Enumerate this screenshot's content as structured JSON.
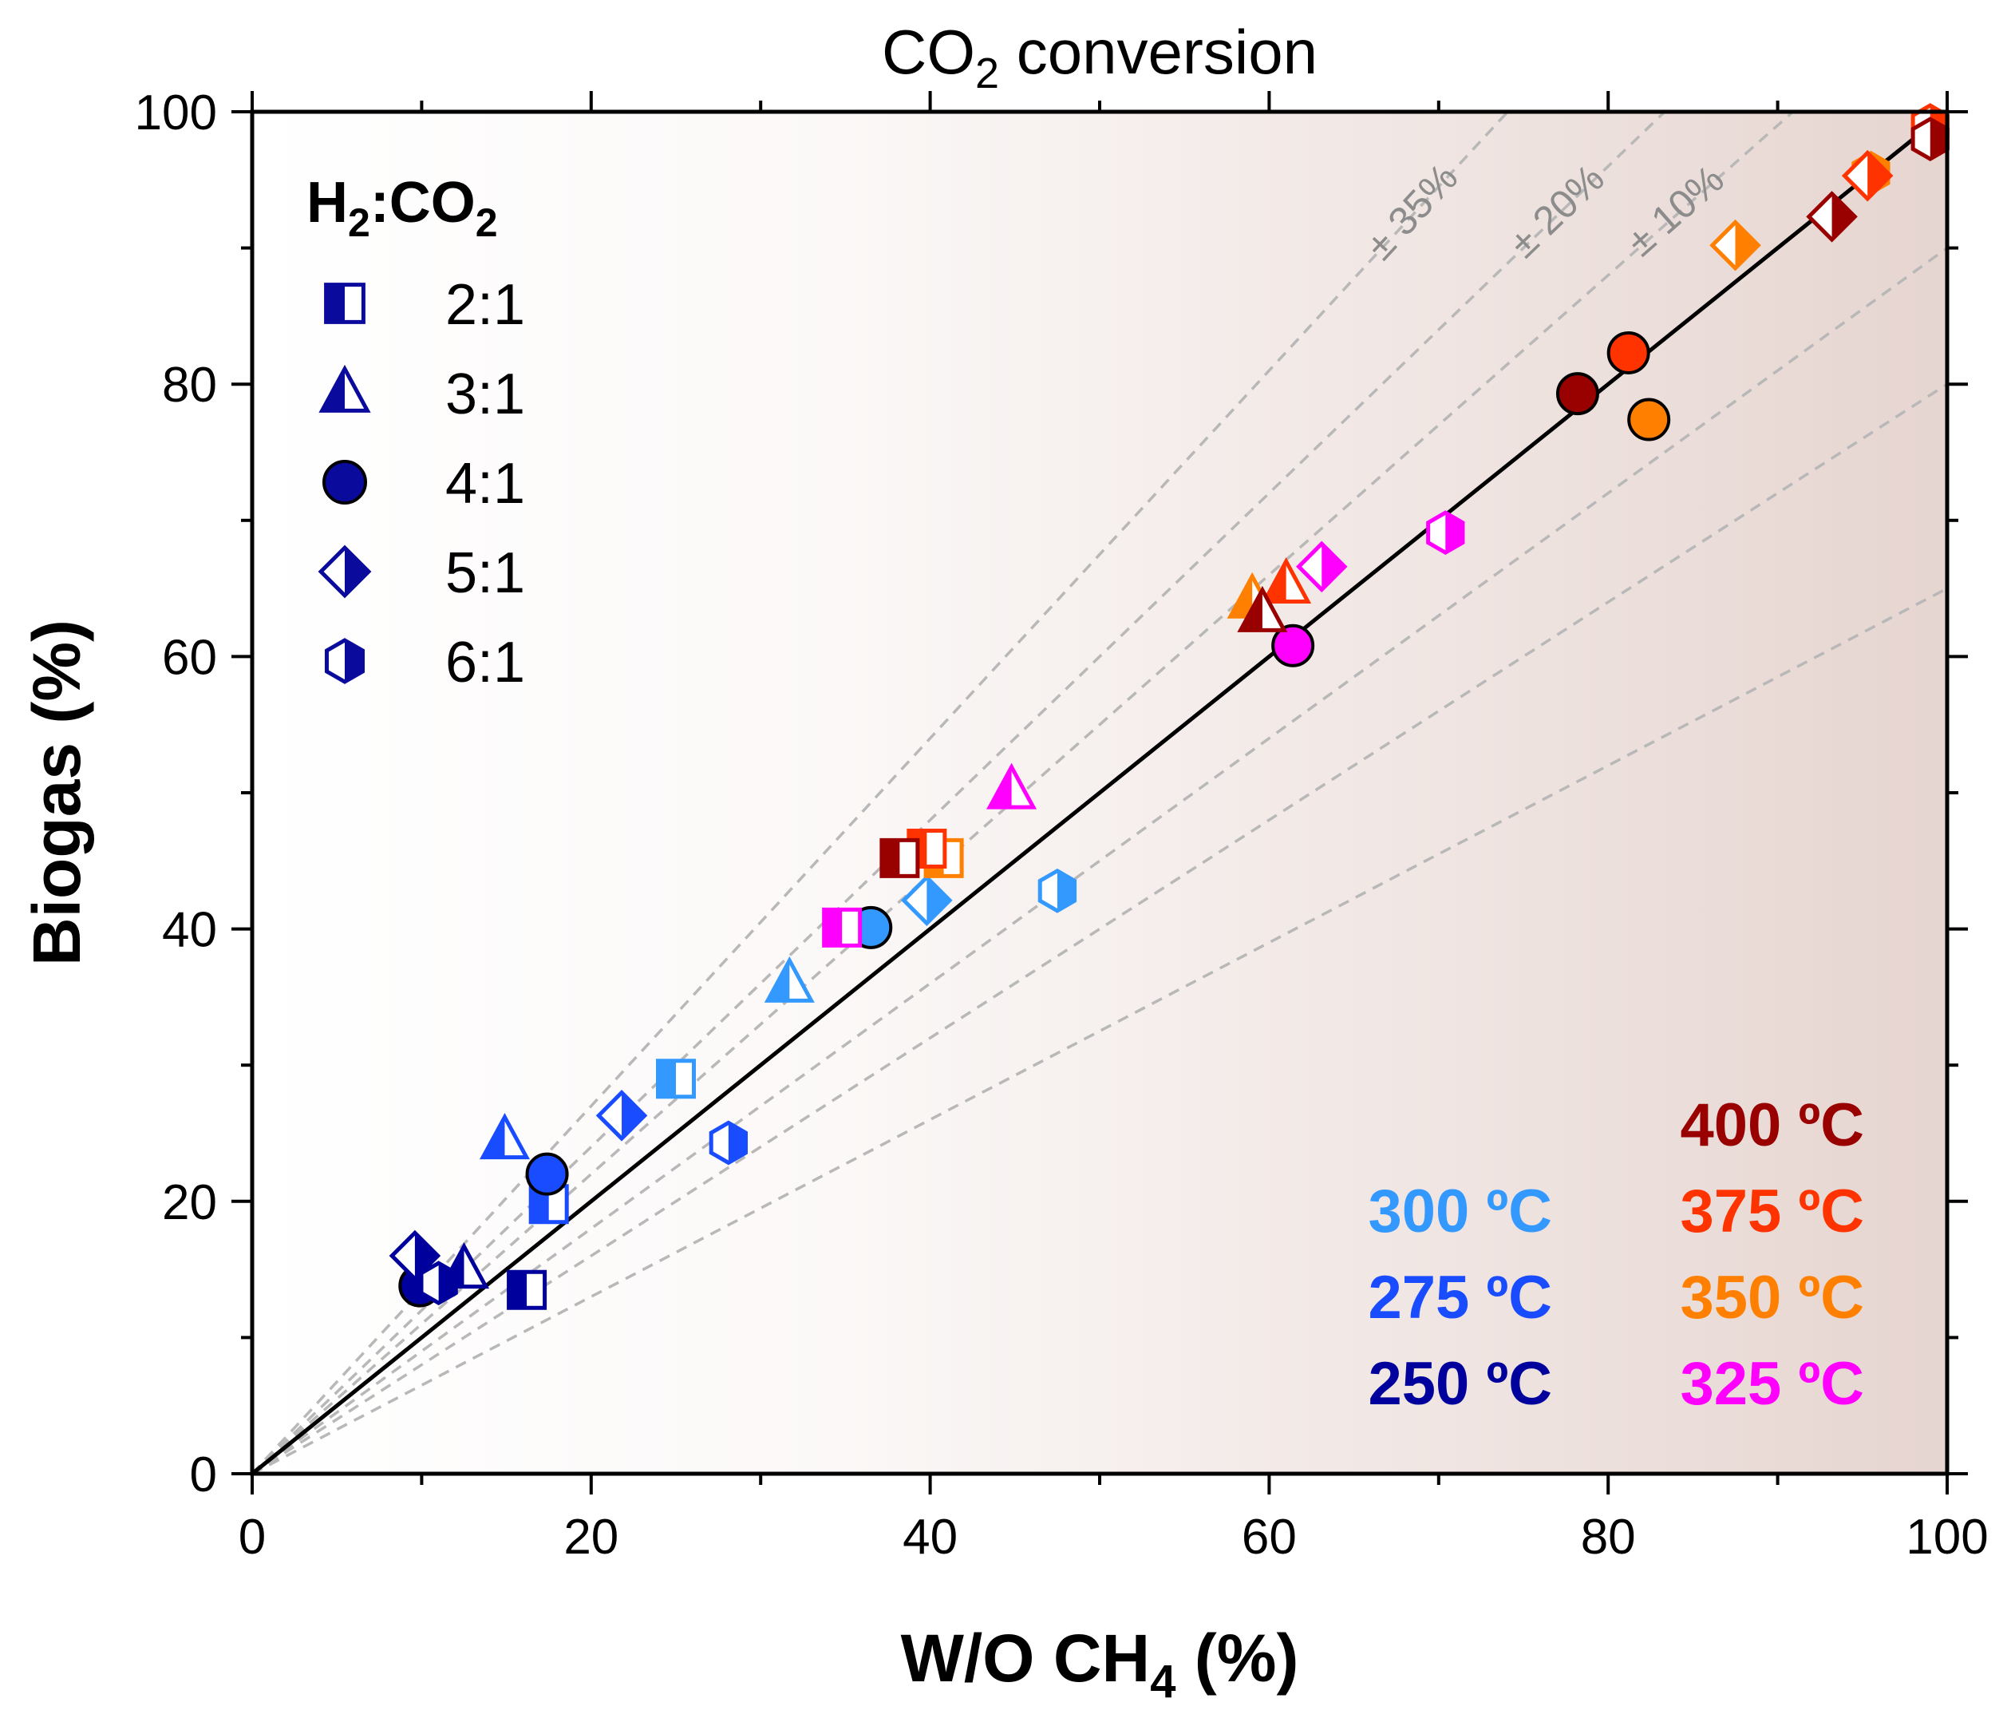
{
  "chart_data": {
    "type": "scatter",
    "title": "CO2 conversion",
    "title_parts": {
      "base": "CO",
      "sub": "2",
      "rest": " conversion"
    },
    "xlabel": "W/O CH4 (%)",
    "xlabel_parts": {
      "base": "W/O CH",
      "sub": "4",
      "rest": " (%)"
    },
    "ylabel": "Biogas (%)",
    "xlim": [
      0,
      100
    ],
    "ylim": [
      0,
      100
    ],
    "xticks": [
      0,
      20,
      40,
      60,
      80,
      100
    ],
    "yticks": [
      0,
      20,
      40,
      60,
      80,
      100
    ],
    "minor_step": 10,
    "grid": false,
    "parity_line": {
      "slope": 1,
      "color": "#000000"
    },
    "guide_lines": [
      {
        "label": "± 35%",
        "slopes": [
          1.35,
          0.65
        ]
      },
      {
        "label": "± 20%",
        "slopes": [
          1.2,
          0.8
        ]
      },
      {
        "label": "± 10%",
        "slopes": [
          1.1,
          0.9
        ]
      }
    ],
    "guide_color": "#b8b8b8",
    "legend": {
      "title": "H2:CO2",
      "title_parts": {
        "a": "H",
        "a_sub": "2",
        "mid": ":CO",
        "b_sub": "2"
      },
      "placement": "top-left",
      "color": "#0a0a9c",
      "entries": [
        {
          "label": "2:1",
          "marker": "square"
        },
        {
          "label": "3:1",
          "marker": "triangle"
        },
        {
          "label": "4:1",
          "marker": "circle"
        },
        {
          "label": "5:1",
          "marker": "diamond"
        },
        {
          "label": "6:1",
          "marker": "hexagon"
        }
      ]
    },
    "temperatures": [
      {
        "label": "400 ºC",
        "temp": 400,
        "color": "#990000"
      },
      {
        "label": "375 ºC",
        "temp": 375,
        "color": "#ff3300"
      },
      {
        "label": "350 ºC",
        "temp": 350,
        "color": "#ff7f00"
      },
      {
        "label": "325 ºC",
        "temp": 325,
        "color": "#ff00ff"
      },
      {
        "label": "300 ºC",
        "temp": 300,
        "color": "#3399ff"
      },
      {
        "label": "275 ºC",
        "temp": 275,
        "color": "#1a4cff"
      },
      {
        "label": "250 ºC",
        "temp": 250,
        "color": "#00009c"
      }
    ],
    "series": [
      {
        "name": "250 ºC",
        "temp": 250,
        "points": [
          {
            "marker": "square",
            "x": 16.2,
            "y": 13.5
          },
          {
            "marker": "triangle",
            "x": 12.5,
            "y": 15.0
          },
          {
            "marker": "circle",
            "x": 9.9,
            "y": 13.8
          },
          {
            "marker": "diamond",
            "x": 9.6,
            "y": 16.0
          },
          {
            "marker": "hexagon",
            "x": 11.0,
            "y": 14.0
          }
        ]
      },
      {
        "name": "275 ºC",
        "temp": 275,
        "points": [
          {
            "marker": "square",
            "x": 17.5,
            "y": 19.8
          },
          {
            "marker": "triangle",
            "x": 14.9,
            "y": 24.5
          },
          {
            "marker": "circle",
            "x": 17.4,
            "y": 22.0
          },
          {
            "marker": "diamond",
            "x": 21.8,
            "y": 26.3
          },
          {
            "marker": "hexagon",
            "x": 28.1,
            "y": 24.3
          }
        ]
      },
      {
        "name": "300 ºC",
        "temp": 300,
        "points": [
          {
            "marker": "square",
            "x": 25.0,
            "y": 29.0
          },
          {
            "marker": "triangle",
            "x": 31.7,
            "y": 36.0
          },
          {
            "marker": "circle",
            "x": 36.5,
            "y": 40.1
          },
          {
            "marker": "diamond",
            "x": 39.8,
            "y": 42.1
          },
          {
            "marker": "hexagon",
            "x": 47.5,
            "y": 42.8
          }
        ]
      },
      {
        "name": "325 ºC",
        "temp": 325,
        "points": [
          {
            "marker": "square",
            "x": 34.8,
            "y": 40.1
          },
          {
            "marker": "triangle",
            "x": 44.8,
            "y": 50.2
          },
          {
            "marker": "circle",
            "x": 61.4,
            "y": 60.8
          },
          {
            "marker": "diamond",
            "x": 63.1,
            "y": 66.6
          },
          {
            "marker": "hexagon",
            "x": 70.4,
            "y": 69.1
          }
        ]
      },
      {
        "name": "350 ºC",
        "temp": 350,
        "points": [
          {
            "marker": "square",
            "x": 40.8,
            "y": 45.2
          },
          {
            "marker": "triangle",
            "x": 59.0,
            "y": 64.2
          },
          {
            "marker": "circle",
            "x": 82.4,
            "y": 77.4
          },
          {
            "marker": "diamond",
            "x": 87.5,
            "y": 90.2
          },
          {
            "marker": "hexagon",
            "x": 95.5,
            "y": 95.5
          }
        ]
      },
      {
        "name": "375 ºC",
        "temp": 375,
        "points": [
          {
            "marker": "square",
            "x": 39.8,
            "y": 45.9
          },
          {
            "marker": "triangle",
            "x": 61.0,
            "y": 65.3
          },
          {
            "marker": "circle",
            "x": 81.2,
            "y": 82.3
          },
          {
            "marker": "diamond",
            "x": 95.3,
            "y": 95.3
          },
          {
            "marker": "hexagon",
            "x": 99.0,
            "y": 99.0
          }
        ]
      },
      {
        "name": "400 ºC",
        "temp": 400,
        "points": [
          {
            "marker": "square",
            "x": 38.2,
            "y": 45.2
          },
          {
            "marker": "triangle",
            "x": 59.6,
            "y": 63.2
          },
          {
            "marker": "circle",
            "x": 78.2,
            "y": 79.3
          },
          {
            "marker": "diamond",
            "x": 93.2,
            "y": 92.3
          },
          {
            "marker": "hexagon",
            "x": 99.0,
            "y": 98.0
          }
        ]
      }
    ]
  }
}
